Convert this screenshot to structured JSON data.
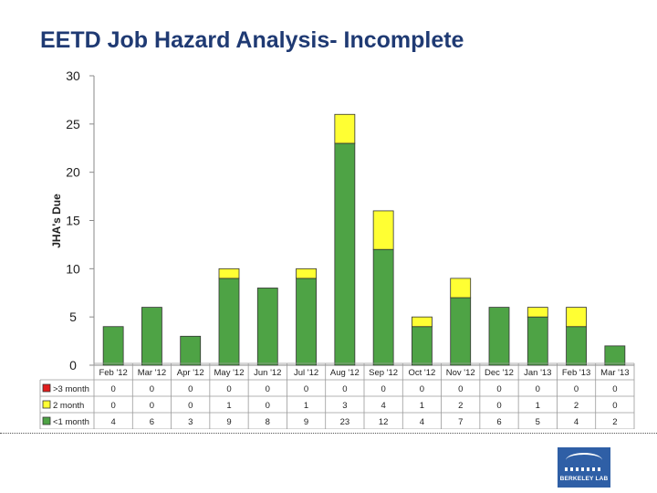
{
  "chart_data": {
    "type": "bar",
    "stacked": true,
    "title": "EETD Job Hazard Analysis- Incomplete",
    "ylabel": "JHA's Due",
    "ylim": [
      0,
      30
    ],
    "yticks": [
      0,
      5,
      10,
      15,
      20,
      25,
      30
    ],
    "grid": false,
    "legend": "data-table",
    "categories": [
      "Feb '12",
      "Mar '12",
      "Apr '12",
      "May '12",
      "Jun '12",
      "Jul '12",
      "Aug '12",
      "Sep '12",
      "Oct '12",
      "Nov '12",
      "Dec '12",
      "Jan '13",
      "Feb '13",
      "Mar '13"
    ],
    "series": [
      {
        "name": ">3 month",
        "color": "#e11d1d",
        "values": [
          0,
          0,
          0,
          0,
          0,
          0,
          0,
          0,
          0,
          0,
          0,
          0,
          0,
          0
        ]
      },
      {
        "name": "2 month",
        "color": "#ffff33",
        "values": [
          0,
          0,
          0,
          1,
          0,
          1,
          3,
          4,
          1,
          2,
          0,
          1,
          2,
          0
        ]
      },
      {
        "name": "<1 month",
        "color": "#4ea345",
        "values": [
          4,
          6,
          3,
          9,
          8,
          9,
          23,
          12,
          4,
          7,
          6,
          5,
          4,
          2
        ]
      }
    ],
    "stack_order": [
      "<1 month",
      "2 month",
      ">3 month"
    ]
  },
  "logo": {
    "text": "BERKELEY LAB"
  }
}
